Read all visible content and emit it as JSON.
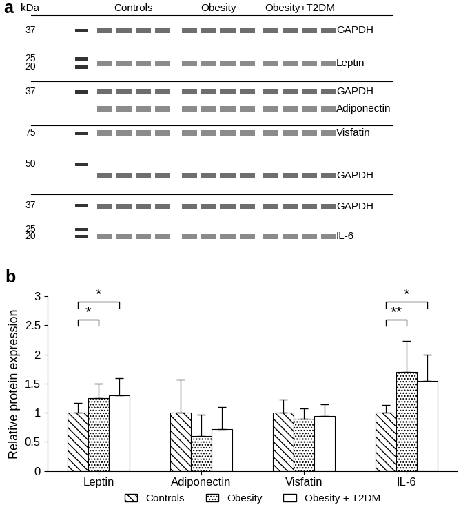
{
  "blot": {
    "panel_label": "a",
    "unit": "kDa",
    "groups": [
      "Controls",
      "Obesity",
      "Obesity+T2DM"
    ],
    "strips": [
      {
        "markers": [
          37,
          25,
          20
        ],
        "proteins": [
          "GAPDH",
          "Leptin"
        ]
      },
      {
        "markers": [
          37
        ],
        "proteins": [
          "GAPDH",
          "Adiponectin"
        ]
      },
      {
        "markers": [
          75,
          50
        ],
        "proteins": [
          "Visfatin",
          "GAPDH"
        ]
      },
      {
        "markers": [
          37,
          25,
          20
        ],
        "proteins": [
          "GAPDH",
          "IL-6"
        ]
      }
    ]
  },
  "chart_data": {
    "type": "bar",
    "panel_label": "b",
    "y_label": "Relative protein expression",
    "categories": [
      "Leptin",
      "Adiponectin",
      "Visfatin",
      "IL-6"
    ],
    "series": [
      {
        "name": "Controls",
        "color": "#ffffff",
        "values": [
          1,
          1,
          1,
          1
        ],
        "errors": [
          0.17,
          0.57,
          0.23,
          0.13
        ]
      },
      {
        "name": "Obesity",
        "color": "#ffffff",
        "values": [
          1.25,
          0.6,
          0.89,
          1.7
        ],
        "errors": [
          0.25,
          0.36,
          0.18,
          0.53
        ]
      },
      {
        "name": "Obesity + T2DM",
        "color": "#ffffff",
        "values": [
          1.3,
          0.72,
          0.94,
          1.55
        ],
        "errors": [
          0.29,
          0.38,
          0.2,
          0.45
        ]
      }
    ],
    "ylim": [
      0,
      3
    ],
    "yticks": [
      0,
      0.5,
      1,
      1.5,
      2,
      2.5,
      3
    ],
    "legend": "lower center",
    "significance": [
      {
        "category": "Leptin",
        "from": "Controls",
        "to": "Obesity",
        "label": "*"
      },
      {
        "category": "Leptin",
        "from": "Controls",
        "to": "Obesity + T2DM",
        "label": "*"
      },
      {
        "category": "IL-6",
        "from": "Controls",
        "to": "Obesity",
        "label": "**"
      },
      {
        "category": "IL-6",
        "from": "Controls",
        "to": "Obesity + T2DM",
        "label": "*"
      }
    ]
  }
}
